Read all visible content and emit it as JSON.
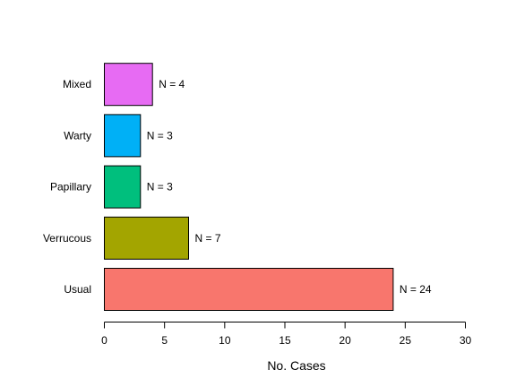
{
  "chart_data": {
    "type": "bar",
    "orientation": "horizontal",
    "title": "",
    "xlabel": "No. Cases",
    "ylabel": "",
    "xlim": [
      0,
      30
    ],
    "x_ticks": [
      0,
      5,
      10,
      15,
      20,
      25,
      30
    ],
    "grid": false,
    "legend": "none",
    "categories": [
      "Usual",
      "Verrucous",
      "Papillary",
      "Warty",
      "Mixed"
    ],
    "values": [
      24,
      7,
      3,
      3,
      4
    ],
    "data_labels": [
      "N = 24",
      "N = 7",
      "N = 3",
      "N = 3",
      "N = 4"
    ],
    "colors": [
      "#F8766D",
      "#A3A500",
      "#00BF7D",
      "#00B0F6",
      "#E76BF3"
    ]
  }
}
